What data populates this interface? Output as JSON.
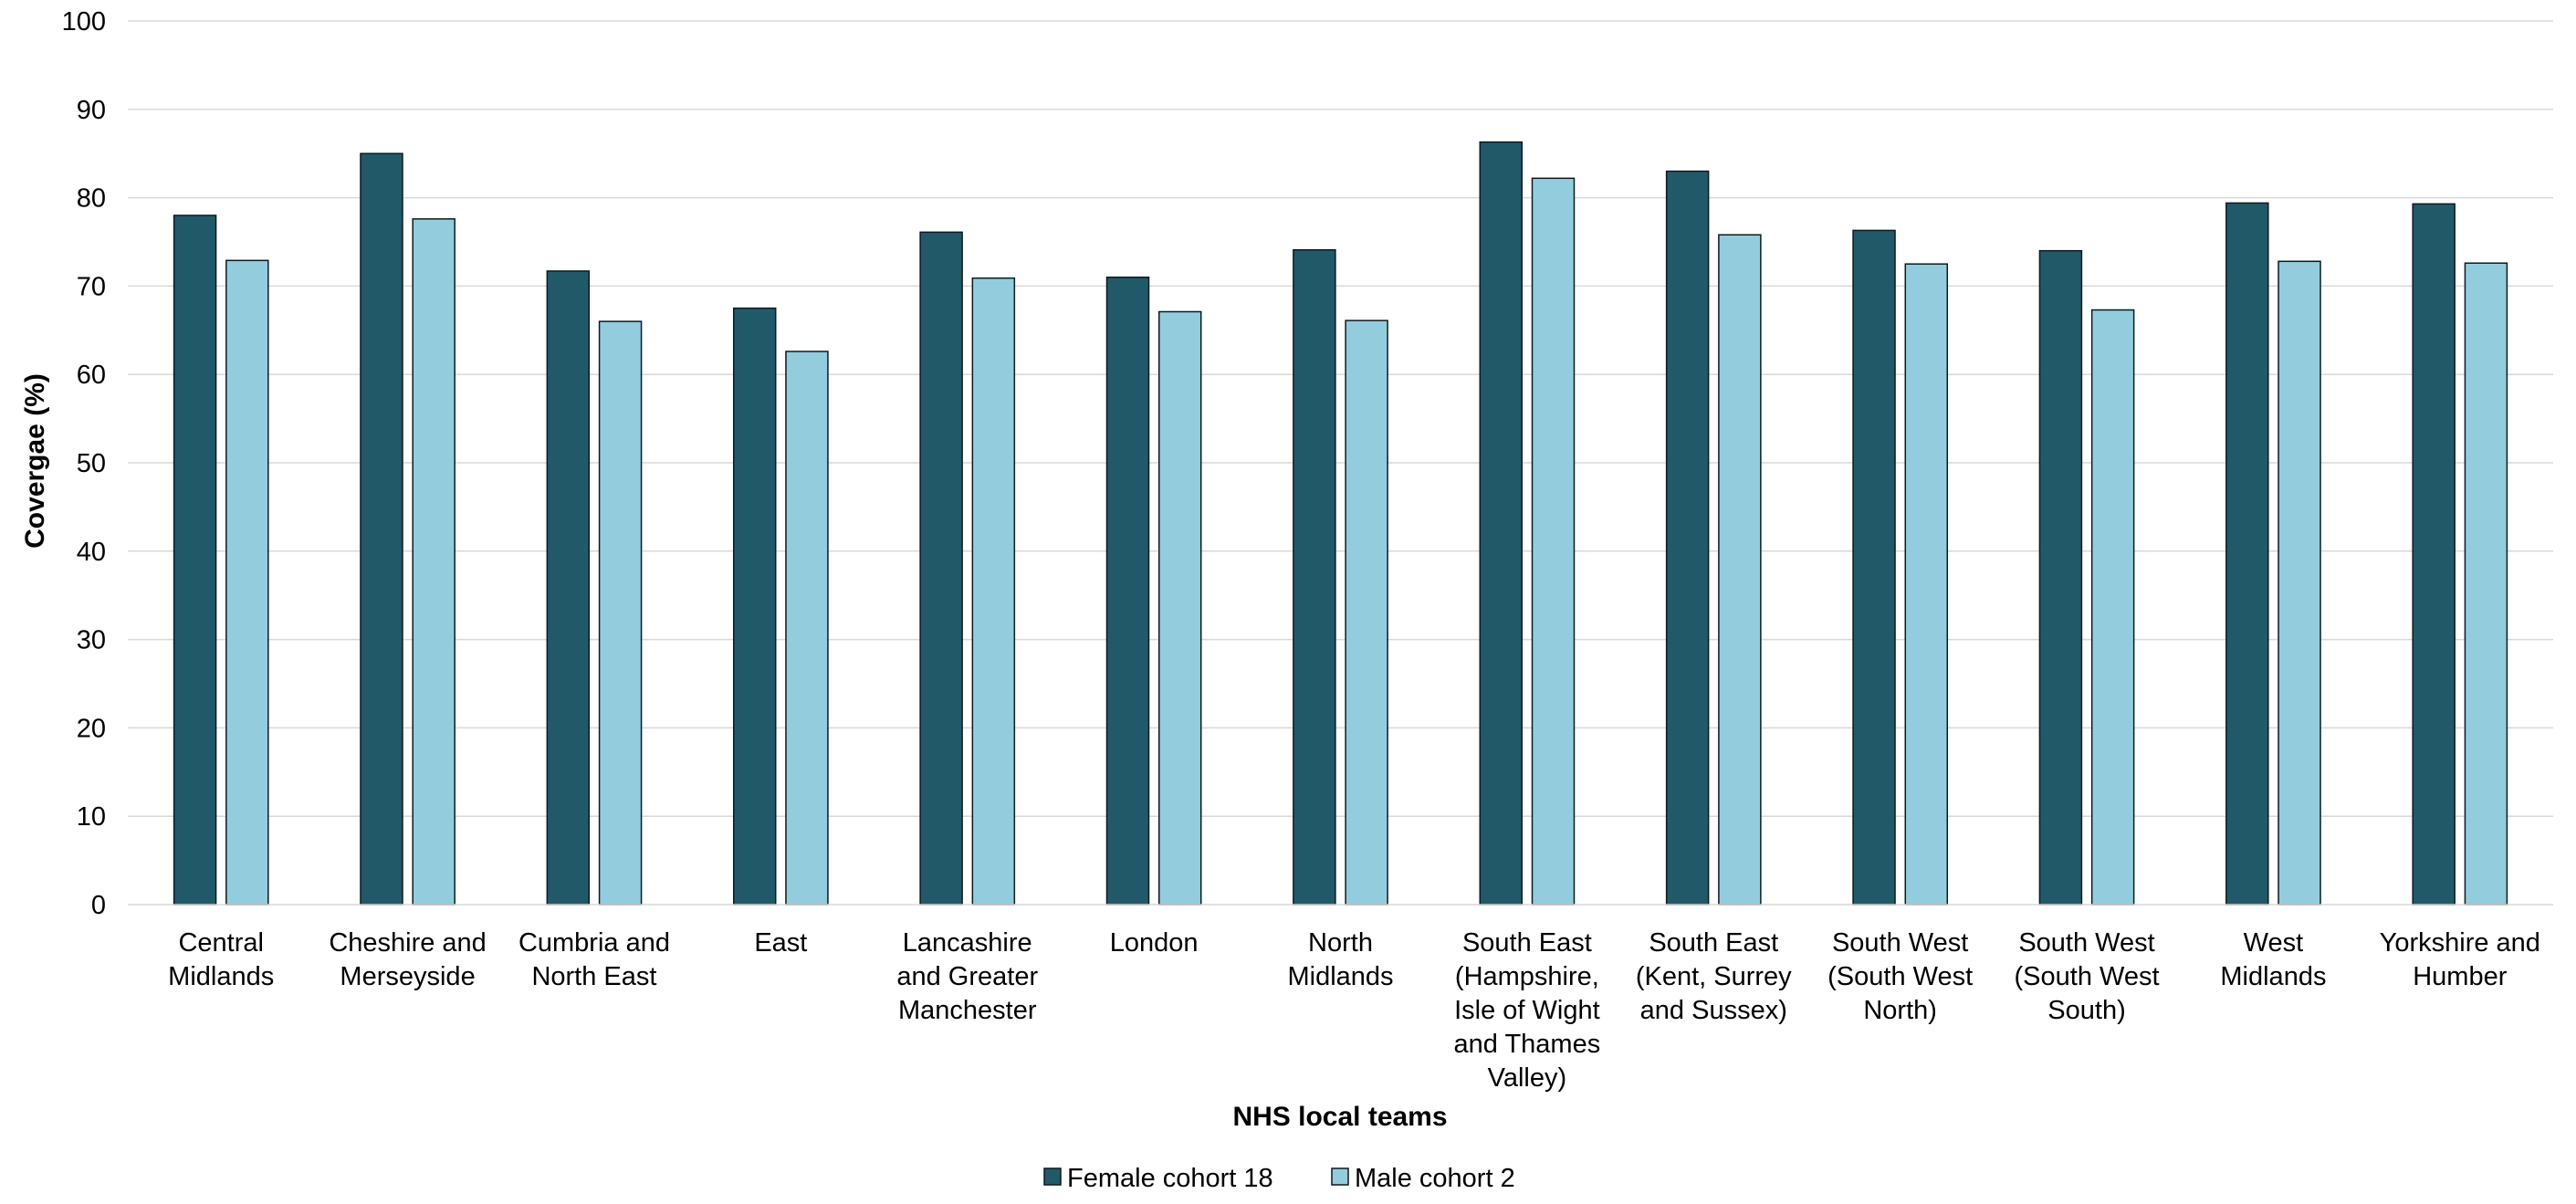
{
  "chart_data": {
    "type": "bar",
    "ylabel": "Covergae (%)",
    "xlabel": "NHS local teams",
    "ylim": [
      0,
      100
    ],
    "yticks": [
      "0",
      "10",
      "20",
      "30",
      "40",
      "50",
      "60",
      "70",
      "80",
      "90",
      "100"
    ],
    "grid": true,
    "legend_position": "bottom",
    "categories": [
      [
        "Central",
        "Midlands"
      ],
      [
        "Cheshire and",
        "Merseyside"
      ],
      [
        "Cumbria and",
        "North East"
      ],
      [
        "East"
      ],
      [
        "Lancashire",
        "and Greater",
        "Manchester"
      ],
      [
        "London"
      ],
      [
        "North",
        "Midlands"
      ],
      [
        "South East",
        "(Hampshire,",
        "Isle of Wight",
        "and Thames",
        "Valley)"
      ],
      [
        "South East",
        "(Kent, Surrey",
        "and Sussex)"
      ],
      [
        "South West",
        "(South West",
        "North)"
      ],
      [
        "South West",
        "(South West",
        "South)"
      ],
      [
        "West",
        "Midlands"
      ],
      [
        "Yorkshire and",
        "Humber"
      ]
    ],
    "series": [
      {
        "name": "Female cohort 18",
        "color": "#215968",
        "values": [
          78.0,
          85.0,
          71.7,
          67.5,
          76.1,
          71.0,
          74.1,
          86.3,
          83.0,
          76.3,
          74.0,
          79.4,
          79.3
        ]
      },
      {
        "name": "Male cohort 2",
        "color": "#93CDDD",
        "values": [
          72.9,
          77.6,
          66.0,
          62.6,
          70.9,
          67.1,
          66.1,
          82.2,
          75.8,
          72.5,
          67.3,
          72.8,
          72.6
        ]
      }
    ]
  }
}
